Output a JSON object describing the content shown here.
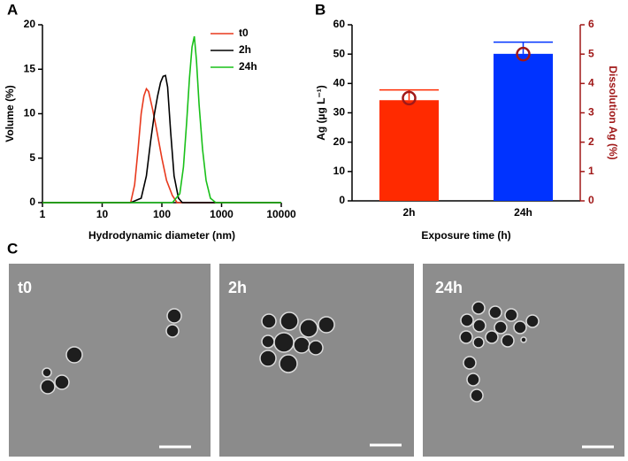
{
  "chart_data": [
    {
      "type": "line",
      "panel_label": "A",
      "xlabel": "Hydrodynamic diameter (nm)",
      "ylabel": "Volume (%)",
      "xscale": "log",
      "xlim": [
        1,
        10000
      ],
      "xticks": [
        1,
        10,
        100,
        1000,
        10000
      ],
      "ylim": [
        0,
        20
      ],
      "yticks": [
        0,
        5,
        10,
        15,
        20
      ],
      "legend": "upper right",
      "series": [
        {
          "name": "t0",
          "color": "#e8391d",
          "x": [
            1,
            20,
            30,
            35,
            40,
            45,
            50,
            55,
            60,
            70,
            80,
            100,
            120,
            150,
            180,
            10000
          ],
          "values": [
            0,
            0,
            0,
            2,
            6,
            10,
            12,
            12.8,
            12.5,
            10.5,
            8.5,
            5,
            2.5,
            0.8,
            0,
            0
          ]
        },
        {
          "name": "2h",
          "color": "#000000",
          "x": [
            1,
            30,
            45,
            55,
            65,
            75,
            85,
            95,
            105,
            115,
            125,
            140,
            160,
            190,
            220,
            10000
          ],
          "values": [
            0,
            0,
            0.5,
            3,
            7,
            10,
            12,
            13.5,
            14.2,
            14.3,
            13,
            8,
            3,
            0.5,
            0,
            0
          ]
        },
        {
          "name": "24h",
          "color": "#19c019",
          "x": [
            1,
            150,
            200,
            230,
            260,
            290,
            320,
            350,
            380,
            420,
            480,
            550,
            650,
            800,
            10000
          ],
          "values": [
            0,
            0,
            1,
            4,
            9,
            14,
            17.5,
            18.7,
            16,
            11,
            6,
            2.5,
            0.5,
            0,
            0
          ]
        }
      ]
    },
    {
      "type": "bar",
      "panel_label": "B",
      "xlabel": "Exposure time (h)",
      "ylabel": "Ag (µg L⁻¹)",
      "y2label": "Dissolution Ag (%)",
      "categories": [
        "2h",
        "24h"
      ],
      "ylim": [
        0,
        60
      ],
      "yticks": [
        0,
        10,
        20,
        30,
        40,
        50,
        60
      ],
      "y2lim": [
        0,
        6
      ],
      "y2ticks": [
        0,
        1,
        2,
        3,
        4,
        5,
        6
      ],
      "y2color": "#a01818",
      "series": [
        {
          "values": [
            34.3,
            50.1
          ],
          "errors": [
            3.5,
            4
          ],
          "colors": [
            "#ff2a00",
            "#0033ff"
          ]
        },
        {
          "axis": "y2",
          "marker": "circle",
          "values": [
            3.5,
            5.0
          ],
          "color": "#a01818"
        }
      ]
    }
  ],
  "micrograph_panel": {
    "panel_label": "C",
    "images": [
      "t0",
      "2h",
      "24h"
    ]
  }
}
